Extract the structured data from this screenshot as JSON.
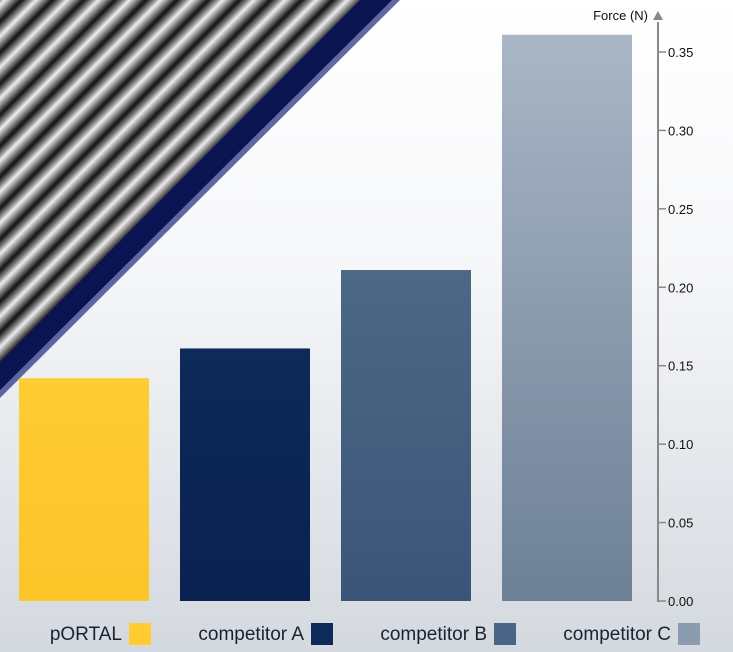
{
  "chart_data": {
    "type": "bar",
    "categories": [
      "pORTAL",
      "competitor A",
      "competitor B",
      "competitor C"
    ],
    "values": [
      0.142,
      0.161,
      0.211,
      0.361
    ],
    "ylabel": "Force (N)",
    "ylim": [
      0,
      0.35
    ],
    "yticks": [
      0.0,
      0.05,
      0.1,
      0.15,
      0.2,
      0.25,
      0.3,
      0.35
    ],
    "ytick_labels": [
      "0.00",
      "0.05",
      "0.10",
      "0.15",
      "0.20",
      "0.25",
      "0.30",
      "0.35"
    ],
    "grid": false,
    "legend_position": "bottom",
    "y_axis_side": "right",
    "colors": [
      "#ffcc33",
      "#0e2a58",
      "#4a6585",
      "#8a9cb0"
    ]
  },
  "illustration": {
    "icon": "corrugated-tube-illustration"
  }
}
